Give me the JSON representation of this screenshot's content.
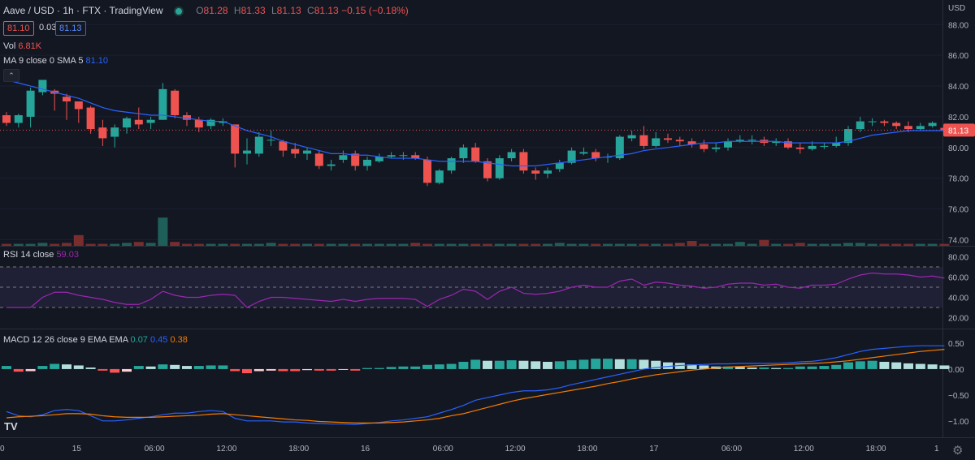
{
  "header": {
    "symbol": "Aave / USD · 1h · FTX · TradingView",
    "ohlc": {
      "o_label": "O",
      "o": "81.28",
      "h_label": "H",
      "h": "81.33",
      "l_label": "L",
      "l": "81.13",
      "c_label": "C",
      "c": "81.13",
      "change": "−0.15 (−0.18%)"
    },
    "bid": "81.10",
    "spread": "0.03",
    "ask": "81.13",
    "vol_label": "Vol",
    "vol_value": "6.81K",
    "ma_label": "MA 9 close 0 SMA 5",
    "ma_value": "81.10",
    "collapse_glyph": "⌃"
  },
  "rsi_legend": {
    "label": "RSI 14 close",
    "value": "59.03"
  },
  "macd_legend": {
    "label": "MACD 12 26 close 9 EMA EMA",
    "hist": "0.07",
    "macd": "0.45",
    "signal": "0.38"
  },
  "logo_text": "TV",
  "settings_glyph": "⚙",
  "colors": {
    "up": "#26a69a",
    "down": "#ef5350",
    "ma": "#2962ff",
    "rsi": "#9c27b0",
    "macd": "#2962ff",
    "signal": "#f57c00"
  },
  "chart_data": {
    "type": "candlestick",
    "title": "Aave / USD · 1h · FTX",
    "currency_label": "USD",
    "x_labels": [
      "0",
      "15",
      "06:00",
      "12:00",
      "18:00",
      "16",
      "06:00",
      "12:00",
      "18:00",
      "17",
      "06:00",
      "12:00",
      "18:00",
      "1"
    ],
    "x_label_bar_index": [
      0,
      6,
      12,
      18,
      24,
      30,
      36,
      42,
      48,
      54,
      60,
      66,
      72,
      78
    ],
    "price_axis": {
      "min": 73.6,
      "max": 89.6,
      "ticks": [
        "88.00",
        "86.00",
        "84.00",
        "82.00",
        "80.00",
        "78.00",
        "76.00",
        "74.00"
      ]
    },
    "last_price": "81.13",
    "candles": [
      [
        82.1,
        81.6,
        82.3,
        81.4
      ],
      [
        81.6,
        82.1,
        82.2,
        81.3
      ],
      [
        82.0,
        83.7,
        83.9,
        81.3
      ],
      [
        83.6,
        84.4,
        84.4,
        83.4
      ],
      [
        83.7,
        83.5,
        83.8,
        82.4
      ],
      [
        83.3,
        83.0,
        83.5,
        81.8
      ],
      [
        83.0,
        82.5,
        82.7,
        81.6
      ],
      [
        82.6,
        81.2,
        82.7,
        80.9
      ],
      [
        81.3,
        80.6,
        81.8,
        80.1
      ],
      [
        80.7,
        81.3,
        81.5,
        80.0
      ],
      [
        81.3,
        81.9,
        82.0,
        80.9
      ],
      [
        81.8,
        81.5,
        82.6,
        81.2
      ],
      [
        81.6,
        81.8,
        82.0,
        81.2
      ],
      [
        81.8,
        83.8,
        84.2,
        81.8
      ],
      [
        83.7,
        82.1,
        83.8,
        81.9
      ],
      [
        82.1,
        81.8,
        82.3,
        81.4
      ],
      [
        81.8,
        81.3,
        82.0,
        81.0
      ],
      [
        81.4,
        81.8,
        81.9,
        81.2
      ],
      [
        81.6,
        81.7,
        81.9,
        81.4
      ],
      [
        81.5,
        79.6,
        80.9,
        78.7
      ],
      [
        79.6,
        79.8,
        80.6,
        78.9
      ],
      [
        79.6,
        80.7,
        81.0,
        79.4
      ],
      [
        80.5,
        80.5,
        81.1,
        80.1
      ],
      [
        80.4,
        79.8,
        80.5,
        79.4
      ],
      [
        79.9,
        79.6,
        80.3,
        79.3
      ],
      [
        79.6,
        79.8,
        80.0,
        79.2
      ],
      [
        79.6,
        78.8,
        79.8,
        78.6
      ],
      [
        78.8,
        78.9,
        79.2,
        78.5
      ],
      [
        79.2,
        79.5,
        79.8,
        79.0
      ],
      [
        79.6,
        78.8,
        79.8,
        78.5
      ],
      [
        78.8,
        79.2,
        79.4,
        78.5
      ],
      [
        79.1,
        79.4,
        79.6,
        79.0
      ],
      [
        79.4,
        79.5,
        79.7,
        79.3
      ],
      [
        79.5,
        79.5,
        79.7,
        79.2
      ],
      [
        79.5,
        79.3,
        79.7,
        79.2
      ],
      [
        79.2,
        77.7,
        79.4,
        77.5
      ],
      [
        77.7,
        78.5,
        78.6,
        77.6
      ],
      [
        78.5,
        79.3,
        79.4,
        78.3
      ],
      [
        79.3,
        80.0,
        80.2,
        79.0
      ],
      [
        80.0,
        79.1,
        80.3,
        79.0
      ],
      [
        79.1,
        78.0,
        79.3,
        77.8
      ],
      [
        78.0,
        79.3,
        79.5,
        77.9
      ],
      [
        79.3,
        79.7,
        79.9,
        79.1
      ],
      [
        79.7,
        78.5,
        79.9,
        78.3
      ],
      [
        78.5,
        78.3,
        78.7,
        77.9
      ],
      [
        78.3,
        78.5,
        78.7,
        78.0
      ],
      [
        78.6,
        79.0,
        79.2,
        78.4
      ],
      [
        79.0,
        79.8,
        80.0,
        78.9
      ],
      [
        79.6,
        79.7,
        80.0,
        79.5
      ],
      [
        79.7,
        79.3,
        79.9,
        79.1
      ],
      [
        79.4,
        79.4,
        79.6,
        79.0
      ],
      [
        79.3,
        80.7,
        80.8,
        79.2
      ],
      [
        80.6,
        80.8,
        81.1,
        80.4
      ],
      [
        80.8,
        80.1,
        81.4,
        79.9
      ],
      [
        80.1,
        80.6,
        81.0,
        80.0
      ],
      [
        80.6,
        80.5,
        80.9,
        80.3
      ],
      [
        80.5,
        80.4,
        80.7,
        80.1
      ],
      [
        80.4,
        80.2,
        80.6,
        80.0
      ],
      [
        80.2,
        79.9,
        80.5,
        79.7
      ],
      [
        79.9,
        80.0,
        80.3,
        79.7
      ],
      [
        80.0,
        80.4,
        80.6,
        79.8
      ],
      [
        80.4,
        80.5,
        80.8,
        80.3
      ],
      [
        80.5,
        80.5,
        80.8,
        80.2
      ],
      [
        80.5,
        80.3,
        80.7,
        80.1
      ],
      [
        80.3,
        80.4,
        80.6,
        80.1
      ],
      [
        80.4,
        80.0,
        80.6,
        79.9
      ],
      [
        80.0,
        79.9,
        80.3,
        79.6
      ],
      [
        79.9,
        80.1,
        80.4,
        79.8
      ],
      [
        80.1,
        80.1,
        80.3,
        79.9
      ],
      [
        80.1,
        80.3,
        80.7,
        80.0
      ],
      [
        80.3,
        81.2,
        81.4,
        80.1
      ],
      [
        81.2,
        81.7,
        82.0,
        81.0
      ],
      [
        81.7,
        81.7,
        81.9,
        81.4
      ],
      [
        81.7,
        81.6,
        81.8,
        81.4
      ],
      [
        81.6,
        81.4,
        81.7,
        81.2
      ],
      [
        81.4,
        81.2,
        81.7,
        81.0
      ],
      [
        81.2,
        81.4,
        81.6,
        81.1
      ],
      [
        81.4,
        81.6,
        81.7,
        81.3
      ],
      [
        81.28,
        81.13,
        81.33,
        81.13
      ]
    ],
    "ma9": [
      84.4,
      84.2,
      84.0,
      83.8,
      83.6,
      83.4,
      83.2,
      82.9,
      82.6,
      82.4,
      82.3,
      82.2,
      82.1,
      82.1,
      82.0,
      81.9,
      81.8,
      81.7,
      81.7,
      81.4,
      81.1,
      80.9,
      80.7,
      80.4,
      80.2,
      80.0,
      79.8,
      79.6,
      79.6,
      79.5,
      79.5,
      79.4,
      79.3,
      79.3,
      79.3,
      79.2,
      79.1,
      79.1,
      79.1,
      79.1,
      79.0,
      78.9,
      78.8,
      78.8,
      78.8,
      78.9,
      79.0,
      79.1,
      79.2,
      79.3,
      79.4,
      79.5,
      79.6,
      79.8,
      79.9,
      80.0,
      80.1,
      80.2,
      80.3,
      80.3,
      80.4,
      80.4,
      80.4,
      80.4,
      80.4,
      80.3,
      80.3,
      80.3,
      80.3,
      80.3,
      80.4,
      80.6,
      80.8,
      80.9,
      81.0,
      81.1,
      81.1,
      81.1,
      81.1
    ],
    "volume": [
      2,
      2,
      2,
      3,
      2,
      3,
      11,
      2,
      2,
      2,
      3,
      4,
      3,
      29,
      4,
      2,
      2,
      2,
      2,
      2,
      2,
      2,
      3,
      2,
      2,
      2,
      2,
      2,
      2,
      2,
      2,
      2,
      2,
      2,
      3,
      2,
      2,
      2,
      2,
      2,
      2,
      2,
      2,
      2,
      2,
      2,
      3,
      2,
      2,
      2,
      2,
      2,
      2,
      2,
      2,
      2,
      3,
      5,
      2,
      2,
      2,
      4,
      2,
      6,
      2,
      2,
      3,
      2,
      2,
      2,
      3,
      3,
      2,
      2,
      2,
      2,
      2,
      2,
      2
    ],
    "rsi": {
      "axis_ticks": [
        "80.00",
        "60.00",
        "40.00",
        "20.00"
      ],
      "range": [
        10,
        90
      ],
      "bands": [
        30,
        50,
        70
      ],
      "values": [
        30,
        30,
        30,
        40,
        45,
        45,
        42,
        40,
        38,
        35,
        33,
        33,
        38,
        46,
        42,
        40,
        40,
        42,
        43,
        42,
        30,
        36,
        40,
        40,
        39,
        38,
        37,
        36,
        38,
        36,
        38,
        39,
        39,
        39,
        38,
        31,
        38,
        42,
        48,
        46,
        38,
        46,
        50,
        44,
        43,
        44,
        46,
        50,
        52,
        50,
        50,
        56,
        58,
        52,
        55,
        54,
        52,
        51,
        49,
        50,
        53,
        54,
        54,
        52,
        53,
        50,
        49,
        52,
        52,
        53,
        58,
        62,
        64,
        63,
        63,
        62,
        60,
        61,
        59
      ]
    },
    "macd": {
      "axis_ticks": [
        "0.50",
        "0.00",
        "−0.50",
        "−1.00"
      ],
      "range": [
        -1.3,
        0.75
      ],
      "hist": [
        0.06,
        -0.05,
        -0.04,
        0.06,
        0.1,
        0.09,
        0.07,
        0.03,
        -0.03,
        -0.07,
        -0.05,
        0.06,
        0.05,
        0.09,
        0.08,
        0.06,
        0.06,
        0.07,
        0.07,
        -0.04,
        -0.08,
        -0.04,
        -0.03,
        -0.04,
        -0.04,
        -0.02,
        -0.03,
        -0.03,
        -0.01,
        -0.03,
        0.02,
        0.02,
        0.04,
        0.05,
        0.05,
        0.08,
        0.09,
        0.1,
        0.14,
        0.18,
        0.16,
        0.16,
        0.17,
        0.16,
        0.15,
        0.14,
        0.15,
        0.17,
        0.18,
        0.2,
        0.2,
        0.19,
        0.19,
        0.18,
        0.16,
        0.13,
        0.12,
        0.09,
        0.07,
        0.05,
        0.05,
        0.04,
        0.03,
        0.03,
        0.02,
        0.02,
        0.05,
        0.05,
        0.06,
        0.08,
        0.13,
        0.15,
        0.16,
        0.14,
        0.13,
        0.11,
        0.1,
        0.09,
        0.07
      ],
      "macd": [
        -0.82,
        -0.9,
        -0.92,
        -0.88,
        -0.8,
        -0.78,
        -0.8,
        -0.9,
        -1.0,
        -1.0,
        -0.98,
        -0.95,
        -0.92,
        -0.88,
        -0.85,
        -0.85,
        -0.82,
        -0.8,
        -0.82,
        -0.95,
        -1.0,
        -1.0,
        -1.0,
        -1.02,
        -1.02,
        -1.04,
        -1.05,
        -1.06,
        -1.06,
        -1.07,
        -1.05,
        -1.03,
        -1.0,
        -0.98,
        -0.95,
        -0.92,
        -0.85,
        -0.78,
        -0.7,
        -0.6,
        -0.55,
        -0.5,
        -0.45,
        -0.42,
        -0.42,
        -0.4,
        -0.36,
        -0.3,
        -0.25,
        -0.2,
        -0.15,
        -0.1,
        -0.05,
        0.0,
        0.03,
        0.05,
        0.07,
        0.08,
        0.09,
        0.1,
        0.1,
        0.11,
        0.11,
        0.11,
        0.11,
        0.12,
        0.14,
        0.15,
        0.18,
        0.22,
        0.28,
        0.34,
        0.38,
        0.4,
        0.42,
        0.44,
        0.45,
        0.45,
        0.45
      ],
      "signal": [
        -0.94,
        -0.92,
        -0.91,
        -0.9,
        -0.88,
        -0.86,
        -0.86,
        -0.87,
        -0.9,
        -0.92,
        -0.93,
        -0.93,
        -0.93,
        -0.92,
        -0.91,
        -0.9,
        -0.89,
        -0.87,
        -0.86,
        -0.88,
        -0.9,
        -0.92,
        -0.94,
        -0.96,
        -0.98,
        -0.99,
        -1.01,
        -1.02,
        -1.03,
        -1.04,
        -1.04,
        -1.04,
        -1.03,
        -1.02,
        -1.0,
        -0.98,
        -0.95,
        -0.9,
        -0.86,
        -0.8,
        -0.74,
        -0.68,
        -0.62,
        -0.57,
        -0.53,
        -0.49,
        -0.45,
        -0.41,
        -0.37,
        -0.33,
        -0.28,
        -0.24,
        -0.19,
        -0.15,
        -0.11,
        -0.08,
        -0.05,
        -0.02,
        0.0,
        0.02,
        0.04,
        0.05,
        0.06,
        0.07,
        0.08,
        0.09,
        0.1,
        0.11,
        0.12,
        0.14,
        0.16,
        0.19,
        0.22,
        0.25,
        0.28,
        0.31,
        0.34,
        0.36,
        0.38
      ]
    }
  }
}
